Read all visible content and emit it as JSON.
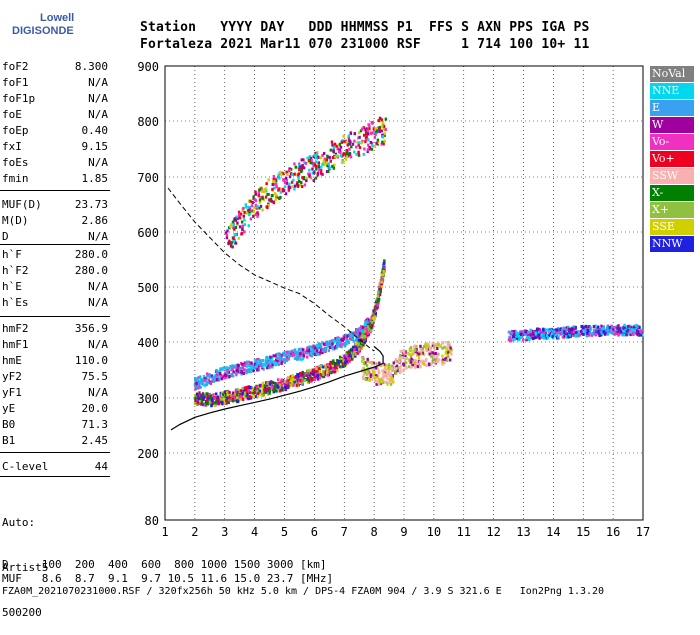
{
  "logo": {
    "line1": "Lowell",
    "line2": "DIGISONDE"
  },
  "header": {
    "labels": "Station   YYYY DAY   DDD HHMMSS P1  FFS S AXN PPS IGA PS",
    "values": "Fortaleza 2021 Mar11 070 231000 RSF     1 714 100 10+ 11"
  },
  "params": [
    {
      "k": "foF2",
      "v": "8.300"
    },
    {
      "k": "foF1",
      "v": "N/A"
    },
    {
      "k": "foF1p",
      "v": "N/A"
    },
    {
      "k": "foE",
      "v": "N/A"
    },
    {
      "k": "foEp",
      "v": "0.40"
    },
    {
      "k": "fxI",
      "v": "9.15"
    },
    {
      "k": "foEs",
      "v": "N/A"
    },
    {
      "k": "fmin",
      "v": "1.85"
    },
    {
      "k": "MUF(D)",
      "v": "23.73"
    },
    {
      "k": "M(D)",
      "v": "2.86"
    },
    {
      "k": "D",
      "v": "N/A"
    },
    {
      "k": "h`F",
      "v": "280.0"
    },
    {
      "k": "h`F2",
      "v": "280.0"
    },
    {
      "k": "h`E",
      "v": "N/A"
    },
    {
      "k": "h`Es",
      "v": "N/A"
    },
    {
      "k": "hmF2",
      "v": "356.9"
    },
    {
      "k": "hmF1",
      "v": "N/A"
    },
    {
      "k": "hmE",
      "v": "110.0"
    },
    {
      "k": "yF2",
      "v": "75.5"
    },
    {
      "k": "yF1",
      "v": "N/A"
    },
    {
      "k": "yE",
      "v": "20.0"
    },
    {
      "k": "B0",
      "v": "71.3"
    },
    {
      "k": "B1",
      "v": "2.45"
    },
    {
      "k": "C-level",
      "v": "44"
    }
  ],
  "auto": [
    "Auto:",
    "Artist5",
    "500200"
  ],
  "legend": [
    {
      "label": "NoVal",
      "color": "#808080"
    },
    {
      "label": "NNE",
      "color": "#00d8f0"
    },
    {
      "label": "E",
      "color": "#3aa0f0"
    },
    {
      "label": "W",
      "color": "#a000a0"
    },
    {
      "label": "Vo-",
      "color": "#f030c0"
    },
    {
      "label": "Vo+",
      "color": "#f00020"
    },
    {
      "label": "SSW",
      "color": "#f8b0b0"
    },
    {
      "label": "X-",
      "color": "#008000"
    },
    {
      "label": "X+",
      "color": "#90c040"
    },
    {
      "label": "SSE",
      "color": "#d0d000"
    },
    {
      "label": "NNW",
      "color": "#2020e0"
    }
  ],
  "footer": {
    "d_row": "D     100  200  400  600  800 1000 1500 3000 [km]",
    "muf_row": "MUF   8.6  8.7  9.1  9.7 10.5 11.6 15.0 23.7 [MHz]",
    "file_row": "FZA0M_2021070231000.RSF / 320fx256h 50 kHz 5.0 km / DPS-4 FZA0M 904 / 3.9 S 321.6 E   Ion2Png 1.3.20"
  },
  "chart_data": {
    "type": "scatter",
    "xlim": [
      1,
      17
    ],
    "ylim": [
      80,
      900
    ],
    "xticks": [
      "1",
      "2",
      "3",
      "4",
      "5",
      "6",
      "7",
      "8",
      "9",
      "10",
      "11",
      "12",
      "13",
      "14",
      "15",
      "16",
      "17"
    ],
    "yticks": [
      "80",
      "200",
      "300",
      "400",
      "500",
      "600",
      "700",
      "800",
      "900"
    ],
    "ytick_values": [
      80,
      200,
      300,
      400,
      500,
      600,
      700,
      800,
      900
    ],
    "grid": true,
    "profile_solid": [
      [
        1.2,
        242
      ],
      [
        1.5,
        252
      ],
      [
        2,
        265
      ],
      [
        2.5,
        273
      ],
      [
        3,
        280
      ],
      [
        3.5,
        286
      ],
      [
        4,
        292
      ],
      [
        4.5,
        298
      ],
      [
        5,
        305
      ],
      [
        5.5,
        312
      ],
      [
        6,
        320
      ],
      [
        6.5,
        329
      ],
      [
        7,
        339
      ],
      [
        7.5,
        347
      ],
      [
        7.8,
        352
      ],
      [
        8,
        355
      ],
      [
        8.1,
        357
      ],
      [
        8.3,
        362
      ],
      [
        8.3,
        375
      ],
      [
        8.2,
        383
      ],
      [
        8.0,
        392
      ]
    ],
    "profile_dashed": [
      [
        1.1,
        680
      ],
      [
        1.5,
        652
      ],
      [
        2,
        618
      ],
      [
        2.5,
        590
      ],
      [
        3,
        562
      ],
      [
        3.5,
        540
      ],
      [
        4,
        522
      ],
      [
        4.5,
        510
      ],
      [
        5,
        498
      ],
      [
        5.5,
        488
      ],
      [
        6,
        470
      ],
      [
        6.5,
        448
      ],
      [
        7,
        428
      ],
      [
        7.5,
        405
      ],
      [
        7.8,
        392
      ],
      [
        8,
        384
      ]
    ],
    "trace_F_low": [
      [
        2.0,
        300
      ],
      [
        2.5,
        296
      ],
      [
        3,
        300
      ],
      [
        3.5,
        305
      ],
      [
        4,
        312
      ],
      [
        4.5,
        318
      ],
      [
        5,
        325
      ],
      [
        5.5,
        333
      ],
      [
        6,
        342
      ],
      [
        6.5,
        352
      ],
      [
        7,
        366
      ],
      [
        7.3,
        380
      ],
      [
        7.6,
        400
      ],
      [
        7.9,
        430
      ],
      [
        8.1,
        470
      ],
      [
        8.25,
        510
      ],
      [
        8.35,
        540
      ]
    ],
    "trace_F_high": [
      [
        2.0,
        325
      ],
      [
        2.5,
        335
      ],
      [
        3,
        345
      ],
      [
        3.5,
        352
      ],
      [
        4,
        358
      ],
      [
        4.5,
        364
      ],
      [
        5,
        372
      ],
      [
        5.5,
        378
      ],
      [
        6,
        385
      ],
      [
        6.5,
        393
      ],
      [
        7,
        402
      ],
      [
        7.5,
        415
      ],
      [
        7.9,
        440
      ]
    ],
    "trace_2F": [
      [
        3.0,
        570
      ],
      [
        3.5,
        615
      ],
      [
        4,
        648
      ],
      [
        4.5,
        672
      ],
      [
        5,
        690
      ],
      [
        5.5,
        705
      ],
      [
        6,
        718
      ],
      [
        6.5,
        735
      ],
      [
        7,
        752
      ],
      [
        7.5,
        760
      ],
      [
        8,
        775
      ],
      [
        8.4,
        785
      ]
    ],
    "trace_spread_ssw": [
      [
        7.6,
        355
      ],
      [
        8,
        345
      ],
      [
        8.5,
        340
      ],
      [
        9,
        370
      ],
      [
        9.5,
        375
      ],
      [
        10,
        380
      ],
      [
        10.6,
        380
      ]
    ],
    "trace_spread_400": [
      [
        12.5,
        410
      ],
      [
        13,
        412
      ],
      [
        13.5,
        415
      ],
      [
        14,
        415
      ],
      [
        14.5,
        418
      ],
      [
        15,
        420
      ],
      [
        15.5,
        420
      ],
      [
        16,
        421
      ],
      [
        16.5,
        422
      ],
      [
        17,
        420
      ]
    ]
  }
}
